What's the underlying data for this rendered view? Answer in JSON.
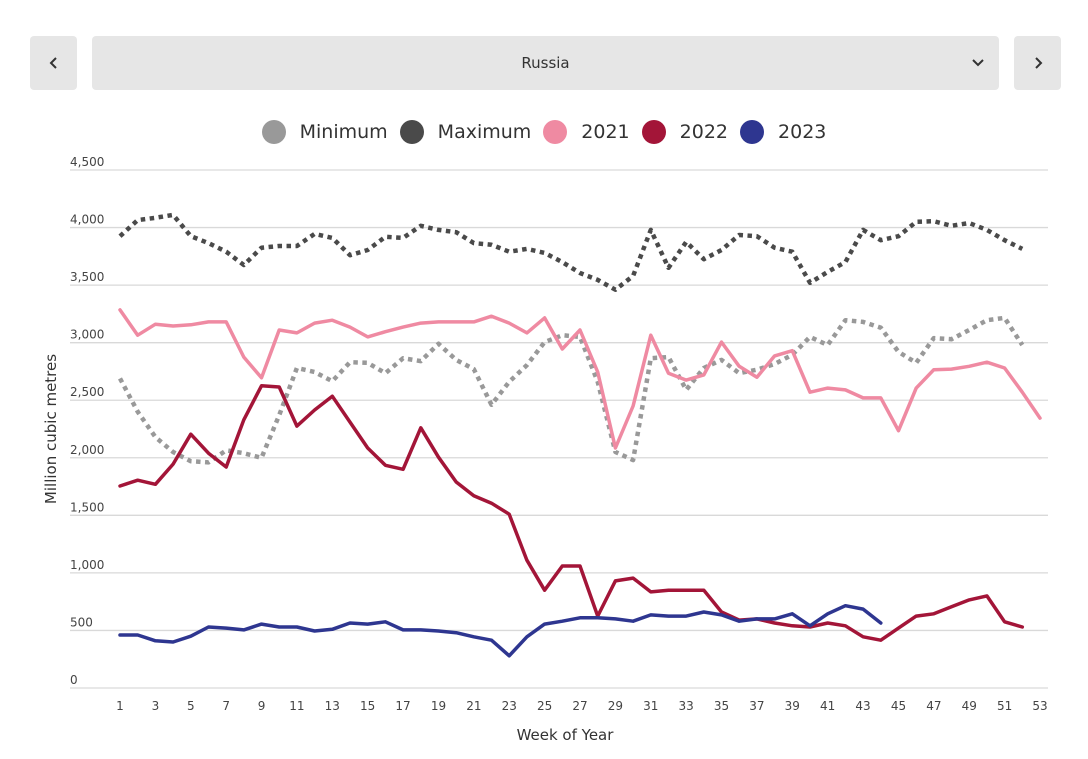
{
  "selector": {
    "prev_label": "previous",
    "next_label": "next",
    "selected": "Russia",
    "prev_icon": "chevron-left-icon",
    "next_icon": "chevron-right-icon",
    "dropdown_icon": "chevron-down-icon"
  },
  "legend": [
    {
      "label": "Minimum",
      "color": "#999999"
    },
    {
      "label": "Maximum",
      "color": "#4a4a4a"
    },
    {
      "label": "2021",
      "color": "#ef8aa2"
    },
    {
      "label": "2022",
      "color": "#a31538"
    },
    {
      "label": "2023",
      "color": "#2e3690"
    }
  ],
  "chart_data": {
    "type": "line",
    "title": "",
    "xlabel": "Week of Year",
    "ylabel": "Million cubic metres",
    "xlim": [
      1,
      53
    ],
    "ylim": [
      0,
      4500
    ],
    "y_ticks": [
      0,
      500,
      1000,
      1500,
      2000,
      2500,
      3000,
      3500,
      4000,
      4500
    ],
    "y_tick_labels": [
      "0",
      "500",
      "1,000",
      "1,500",
      "2,000",
      "2,500",
      "3,000",
      "3,500",
      "4,000",
      "4,500"
    ],
    "x_ticks": [
      1,
      3,
      5,
      7,
      9,
      11,
      13,
      15,
      17,
      19,
      21,
      23,
      25,
      27,
      29,
      31,
      33,
      35,
      37,
      39,
      41,
      43,
      45,
      47,
      49,
      51,
      53
    ],
    "grid": true,
    "legend_position": "top-center",
    "series": [
      {
        "name": "Minimum",
        "color": "#999999",
        "style": "dotted",
        "values": [
          2690,
          2400,
          2180,
          2050,
          1970,
          1960,
          2065,
          2040,
          2000,
          2370,
          2780,
          2745,
          2665,
          2830,
          2825,
          2735,
          2865,
          2840,
          2990,
          2850,
          2770,
          2460,
          2660,
          2805,
          3005,
          3065,
          3050,
          2660,
          2050,
          1980,
          2865,
          2875,
          2590,
          2780,
          2850,
          2735,
          2765,
          2815,
          2895,
          3050,
          2980,
          3195,
          3180,
          3130,
          2920,
          2825,
          3040,
          3030,
          3110,
          3195,
          3215,
          2980
        ]
      },
      {
        "name": "Maximum",
        "color": "#4a4a4a",
        "style": "dotted",
        "values": [
          3925,
          4065,
          4085,
          4110,
          3925,
          3865,
          3790,
          3675,
          3825,
          3840,
          3840,
          3945,
          3910,
          3760,
          3805,
          3920,
          3910,
          4015,
          3980,
          3960,
          3865,
          3850,
          3790,
          3815,
          3780,
          3700,
          3605,
          3545,
          3460,
          3580,
          3980,
          3650,
          3875,
          3725,
          3805,
          3935,
          3925,
          3825,
          3790,
          3520,
          3615,
          3700,
          3980,
          3890,
          3925,
          4050,
          4055,
          4015,
          4040,
          3980,
          3890,
          3815
        ]
      },
      {
        "name": "2021",
        "color": "#ef8aa2",
        "style": "solid",
        "values": [
          3285,
          3065,
          3160,
          3145,
          3155,
          3180,
          3180,
          2875,
          2695,
          3110,
          3085,
          3170,
          3195,
          3135,
          3050,
          3095,
          3135,
          3170,
          3180,
          3180,
          3180,
          3230,
          3170,
          3085,
          3215,
          2945,
          3110,
          2745,
          2085,
          2450,
          3065,
          2735,
          2675,
          2720,
          3005,
          2795,
          2700,
          2885,
          2930,
          2570,
          2605,
          2590,
          2520,
          2520,
          2235,
          2605,
          2765,
          2770,
          2795,
          2830,
          2780,
          2570,
          2345
        ]
      },
      {
        "name": "2022",
        "color": "#a31538",
        "style": "solid",
        "values": [
          1755,
          1805,
          1770,
          1945,
          2205,
          2040,
          1920,
          2330,
          2625,
          2615,
          2275,
          2415,
          2535,
          2310,
          2085,
          1935,
          1900,
          2260,
          2005,
          1790,
          1670,
          1605,
          1510,
          1110,
          850,
          1060,
          1060,
          625,
          930,
          955,
          835,
          850,
          850,
          850,
          660,
          590,
          600,
          565,
          540,
          530,
          565,
          540,
          445,
          415,
          520,
          625,
          645,
          705,
          765,
          800,
          575,
          530
        ]
      },
      {
        "name": "2023",
        "color": "#2e3690",
        "style": "solid",
        "values": [
          460,
          460,
          410,
          400,
          450,
          530,
          520,
          505,
          555,
          530,
          530,
          495,
          510,
          565,
          555,
          575,
          505,
          505,
          495,
          480,
          445,
          415,
          280,
          445,
          555,
          580,
          610,
          610,
          600,
          580,
          635,
          625,
          625,
          660,
          635,
          580,
          600,
          600,
          645,
          540,
          645,
          715,
          685,
          565
        ]
      }
    ]
  }
}
